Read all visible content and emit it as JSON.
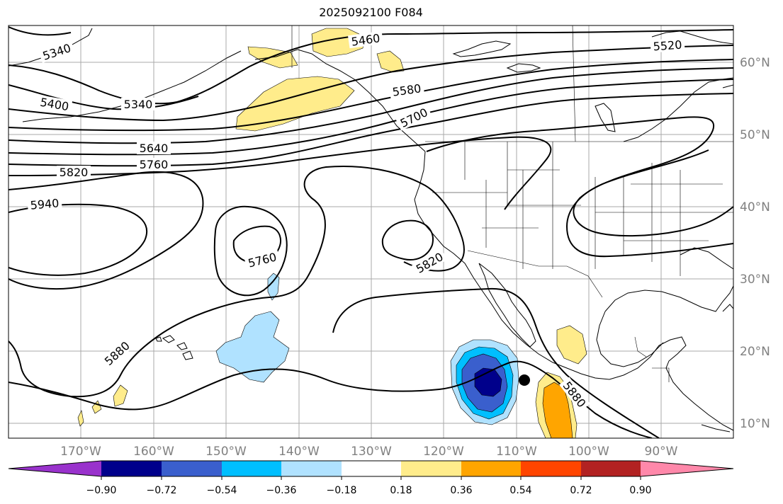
{
  "title": "2025092100 F084",
  "axes": {
    "lon_labels": [
      "170°W",
      "160°W",
      "150°W",
      "140°W",
      "130°W",
      "120°W",
      "110°W",
      "100°W",
      "90°W"
    ],
    "lat_labels": [
      "60°N",
      "50°N",
      "40°N",
      "30°N",
      "20°N",
      "10°N"
    ]
  },
  "contour_labels": [
    "5340",
    "5400",
    "5340",
    "5460",
    "5520",
    "5580",
    "5700",
    "5640",
    "5760",
    "5820",
    "5940",
    "5760",
    "5820",
    "5880",
    "5880"
  ],
  "colorbar": {
    "ticks": [
      "−0.90",
      "−0.72",
      "−0.54",
      "−0.36",
      "−0.18",
      "0.18",
      "0.36",
      "0.54",
      "0.72",
      "0.90"
    ],
    "colors": [
      "#9932cc",
      "#00008b",
      "#3a5fcd",
      "#00bfff",
      "#b0e2ff",
      "#ffffff",
      "#ffec8b",
      "#ffa500",
      "#ff4500",
      "#b22222",
      "#ff88aa"
    ]
  },
  "fill_colors": {
    "pos_018": "#ffec8b",
    "pos_036": "#ffa500",
    "neg_018": "#b0e2ff",
    "neg_036": "#00bfff",
    "neg_054": "#3a5fcd",
    "neg_072": "#00008b"
  }
}
